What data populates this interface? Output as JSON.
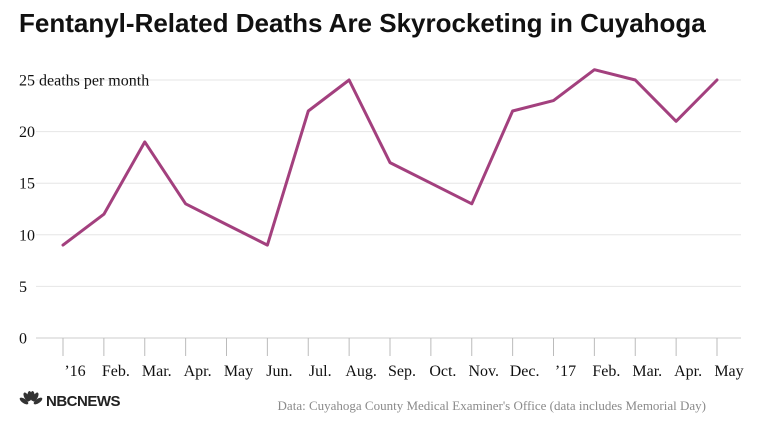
{
  "title": "Fentanyl-Related Deaths Are Skyrocketing in Cuyahoga",
  "source": "Data: Cuyahoga County Medical Examiner's Office (data includes Memorial Day)",
  "logo": {
    "text": "NBCNEWS",
    "icon": "nbc-peacock-icon"
  },
  "colors": {
    "line": "#a3407e",
    "grid": "#e6e6e6",
    "tick": "#bbbbbb",
    "text": "#111111"
  },
  "chart_data": {
    "type": "line",
    "categories": [
      "’16",
      "Feb.",
      "Mar.",
      "Apr.",
      "May",
      "Jun.",
      "Jul.",
      "Aug.",
      "Sep.",
      "Oct.",
      "Nov.",
      "Dec.",
      "’17",
      "Feb.",
      "Mar.",
      "Apr.",
      "May"
    ],
    "values": [
      9,
      12,
      19,
      13,
      11,
      9,
      22,
      25,
      17,
      15,
      13,
      22,
      23,
      26,
      25,
      21,
      25
    ],
    "ylim": [
      0,
      25
    ],
    "yticks": [
      0,
      5,
      10,
      15,
      20,
      25
    ],
    "ytick_labels": [
      "0",
      "5",
      "10",
      "15",
      "20",
      "25 deaths per month"
    ],
    "grid": true,
    "xlabel": "",
    "ylabel": ""
  }
}
